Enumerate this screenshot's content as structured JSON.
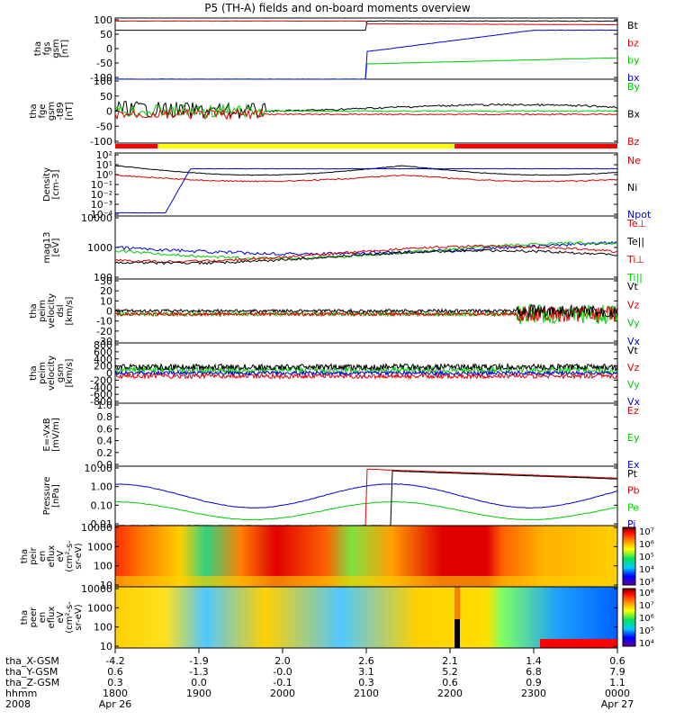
{
  "title": "P5 (TH-A) fields and on-board moments overview",
  "chart_data": {
    "type": "line",
    "time_axis": {
      "ticks": [
        "1800",
        "1900",
        "2000",
        "2100",
        "2200",
        "2300",
        "0000"
      ],
      "dates": {
        "start": "Apr 26",
        "end": "Apr 27"
      },
      "year": "2008",
      "rows": [
        {
          "label": "tha_X-GSM",
          "values": [
            "-4.2",
            "-1.9",
            "2.0",
            "2.6",
            "2.1",
            "1.4",
            "0.6"
          ]
        },
        {
          "label": "tha_Y-GSM",
          "values": [
            "0.6",
            "-1.3",
            "-0.0",
            "3.1",
            "5.2",
            "6.8",
            "7.9"
          ]
        },
        {
          "label": "tha_Z-GSM",
          "values": [
            "0.3",
            "0.0",
            "-0.1",
            "0.3",
            "0.6",
            "0.9",
            "1.1"
          ]
        },
        {
          "label": "hhmm",
          "values": []
        }
      ]
    },
    "panels": [
      {
        "id": "fgs",
        "ylabel": [
          "tha",
          "fgs",
          "gsm",
          "[nT]"
        ],
        "ticks": [
          "100",
          "50",
          "0",
          "-50",
          "-100"
        ],
        "legend": [
          {
            "t": "Bt",
            "c": "#000000"
          },
          {
            "t": "bz",
            "c": "#dd0000"
          },
          {
            "t": "by",
            "c": "#00cc00"
          },
          {
            "t": "bx",
            "c": "#0000dd"
          }
        ]
      },
      {
        "id": "fge",
        "ylabel": [
          "tha",
          "fge",
          "gsm",
          "-t89",
          "[nT]"
        ],
        "ticks": [
          "100",
          "50",
          "0",
          "-50",
          "-100"
        ],
        "legend": [
          {
            "t": "By",
            "c": "#00cc00"
          },
          {
            "t": "Bx",
            "c": "#000000"
          },
          {
            "t": "Bz",
            "c": "#dd0000"
          }
        ]
      },
      {
        "id": "density",
        "ylabel": [
          "Density",
          "[cm-3]"
        ],
        "ticks": [
          "10²",
          "10¹",
          "10⁰",
          "10⁻¹",
          "10⁻²",
          "10⁻³",
          "10⁻⁴"
        ],
        "legend": [
          {
            "t": "Ne",
            "c": "#dd0000"
          },
          {
            "t": "Ni",
            "c": "#000000"
          },
          {
            "t": "Npot",
            "c": "#0000dd"
          }
        ]
      },
      {
        "id": "temp",
        "ylabel": [
          "mag13",
          "[eV]"
        ],
        "ticks": [
          "10000",
          "1000",
          "100"
        ],
        "legend": [
          {
            "t": "Te⊥",
            "c": "#dd0000"
          },
          {
            "t": "Te||",
            "c": "#000000"
          },
          {
            "t": "Ti⊥",
            "c": "#dd0000"
          },
          {
            "t": "Ti||",
            "c": "#00cc00"
          }
        ]
      },
      {
        "id": "peim",
        "ylabel": [
          "tha",
          "peim",
          "velocity",
          "dsl",
          "[km/s]"
        ],
        "ticks": [
          "30",
          "20",
          "10",
          "0",
          "-10",
          "-20",
          "-30"
        ],
        "legend": [
          {
            "t": "Vt",
            "c": "#000000"
          },
          {
            "t": "Vz",
            "c": "#dd0000"
          },
          {
            "t": "Vy",
            "c": "#00cc00"
          },
          {
            "t": "Vx",
            "c": "#0000dd"
          }
        ]
      },
      {
        "id": "peimgsm",
        "ylabel": [
          "tha",
          "peim",
          "velocity",
          "gsm",
          "[km/s]"
        ],
        "ticks": [
          "800",
          "600",
          "400",
          "200",
          "0",
          "-200",
          "-400",
          "-600",
          "-800"
        ],
        "legend": [
          {
            "t": "Vt",
            "c": "#000000"
          },
          {
            "t": "Vz",
            "c": "#dd0000"
          },
          {
            "t": "Vy",
            "c": "#00cc00"
          },
          {
            "t": "Vx",
            "c": "#0000dd"
          }
        ]
      },
      {
        "id": "efield",
        "ylabel": [
          "E=-VxB",
          "[mV/m]"
        ],
        "ticks": [
          "1.0",
          "0.8",
          "0.6",
          "0.4",
          "0.2",
          "0.0"
        ],
        "legend": [
          {
            "t": "Ez",
            "c": "#dd0000"
          },
          {
            "t": "Ey",
            "c": "#00cc00"
          },
          {
            "t": "Ex",
            "c": "#0000dd"
          }
        ]
      },
      {
        "id": "pressure",
        "ylabel": [
          "Pressure",
          "[nPa]"
        ],
        "ticks": [
          "10.00",
          "1.00",
          "0.10",
          "0.01"
        ],
        "legend": [
          {
            "t": "Pt",
            "c": "#000000"
          },
          {
            "t": "Pb",
            "c": "#dd0000"
          },
          {
            "t": "Pe",
            "c": "#00cc00"
          },
          {
            "t": "Pi",
            "c": "#0000dd"
          }
        ]
      },
      {
        "id": "peir",
        "ylabel": [
          "tha",
          "peir",
          "en",
          "eflux",
          "eV",
          "(cm²-s-",
          "sr-eV)"
        ],
        "ticks": [
          "10000",
          "1000",
          "100",
          "10"
        ],
        "colorbar": [
          "10⁷",
          "10⁶",
          "10⁵",
          "10⁴",
          "10³"
        ]
      },
      {
        "id": "peer",
        "ylabel": [
          "tha",
          "peer",
          "en",
          "eflux",
          "eV",
          "(cm²-s-",
          "sr-eV)"
        ],
        "ticks": [
          "10000",
          "1000",
          "100",
          "10"
        ],
        "colorbar": [
          "10⁸",
          "10⁷",
          "10⁶",
          "10⁵",
          "10⁴"
        ]
      }
    ]
  }
}
